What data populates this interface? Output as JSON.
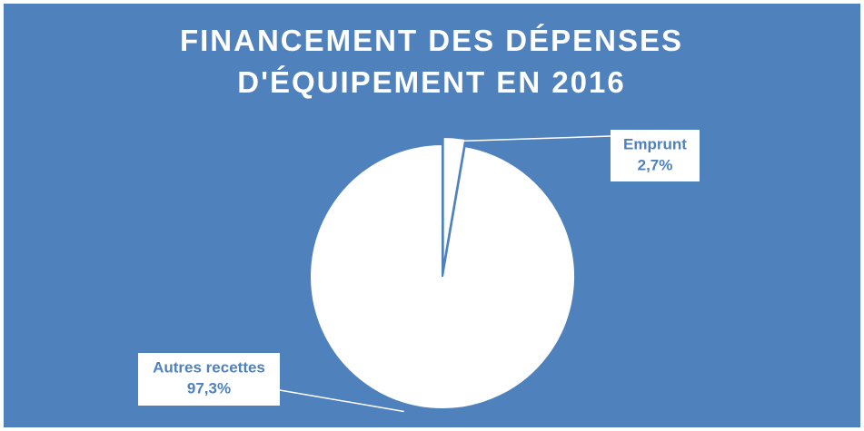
{
  "chart_data": {
    "type": "pie",
    "title": "FINANCEMENT DES DÉPENSES D'ÉQUIPEMENT EN 2016",
    "categories": [
      "Emprunt",
      "Autres recettes"
    ],
    "values": [
      2.7,
      97.3
    ],
    "value_labels": [
      "2,7%",
      "97,3%"
    ],
    "colors": [
      "#ffffff",
      "#ffffff"
    ]
  }
}
